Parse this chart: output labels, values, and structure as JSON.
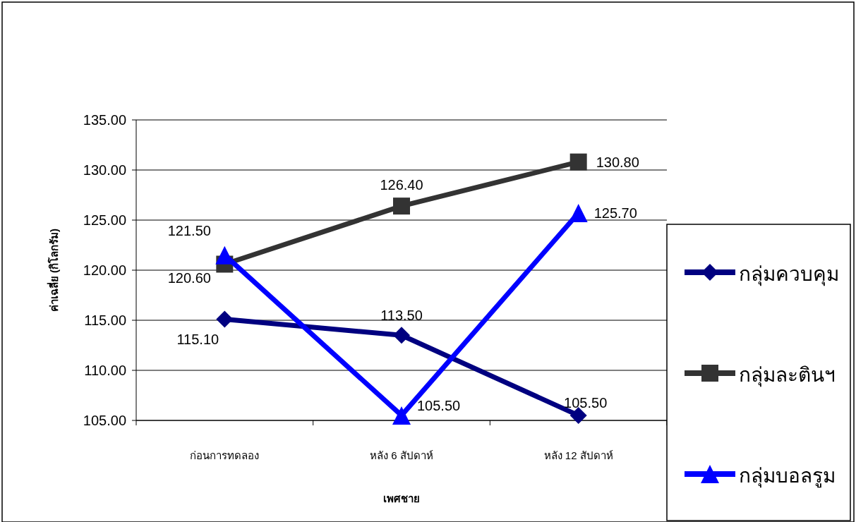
{
  "chart_data": {
    "type": "line",
    "xlabel": "เพศชาย",
    "ylabel": "ค่าเฉลี่ย (กิโลกรัม)",
    "categories": [
      "ก่อนการทดลอง",
      "หลัง 6 สัปดาห์",
      "หลัง 12 สัปดาห์"
    ],
    "series": [
      {
        "name": "กลุ่มควบคุม",
        "color": "#000080",
        "marker": "diamond",
        "values": [
          115.1,
          113.5,
          105.5
        ],
        "value_labels": [
          "115.10",
          "113.50",
          "105.50"
        ]
      },
      {
        "name": "กลุ่มละตินฯ",
        "color": "#333333",
        "marker": "square",
        "values": [
          120.6,
          126.4,
          130.8
        ],
        "value_labels": [
          "120.60",
          "126.40",
          "130.80"
        ]
      },
      {
        "name": "กลุ่มบอลรูม",
        "color": "#0000ff",
        "marker": "triangle",
        "values": [
          121.5,
          105.5,
          125.7
        ],
        "value_labels": [
          "121.50",
          "105.50",
          "125.70"
        ]
      }
    ],
    "ylim": [
      105,
      135
    ],
    "yticks": [
      {
        "value": 105,
        "label": "105.00"
      },
      {
        "value": 110,
        "label": "110.00"
      },
      {
        "value": 115,
        "label": "115.00"
      },
      {
        "value": 120,
        "label": "120.00"
      },
      {
        "value": 125,
        "label": "125.00"
      },
      {
        "value": 130,
        "label": "130.00"
      },
      {
        "value": 135,
        "label": "135.00"
      }
    ],
    "grid": "y",
    "legend": "right",
    "line_style": "solid"
  }
}
